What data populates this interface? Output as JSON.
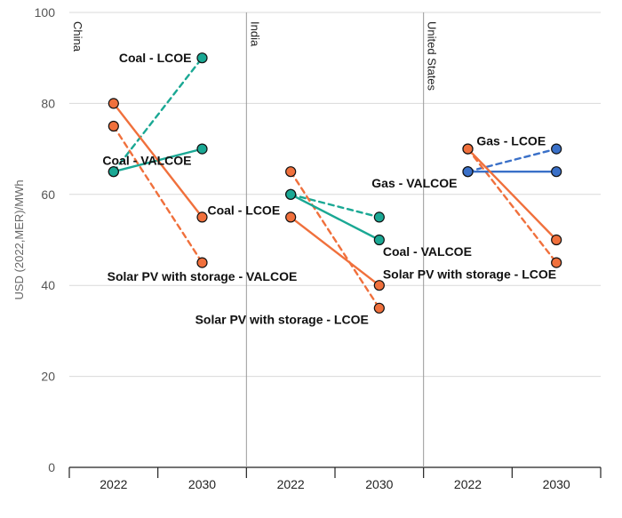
{
  "chart_data": {
    "type": "line",
    "ylabel": "USD (2022,MER)/MWh",
    "ylim": [
      0,
      100
    ],
    "yticks": [
      0,
      20,
      40,
      60,
      80,
      100
    ],
    "grid": "horizontal",
    "panels": [
      {
        "name": "China",
        "categories": [
          "2022",
          "2030"
        ],
        "series": [
          {
            "name": "Coal - LCOE",
            "values": [
              65,
              90
            ],
            "color": "#1aa894",
            "style": "dashed"
          },
          {
            "name": "Coal - VALCOE",
            "values": [
              65,
              70
            ],
            "color": "#1aa894",
            "style": "solid"
          },
          {
            "name": "Solar PV with storage - LCOE",
            "values": [
              75,
              45
            ],
            "color": "#f0703c",
            "style": "dashed"
          },
          {
            "name": "Solar PV with storage - VALCOE",
            "values": [
              80,
              55
            ],
            "color": "#f0703c",
            "style": "solid"
          }
        ]
      },
      {
        "name": "India",
        "categories": [
          "2022",
          "2030"
        ],
        "series": [
          {
            "name": "Coal - LCOE",
            "values": [
              60,
              55
            ],
            "color": "#1aa894",
            "style": "dashed"
          },
          {
            "name": "Coal - VALCOE",
            "values": [
              60,
              50
            ],
            "color": "#1aa894",
            "style": "solid"
          },
          {
            "name": "Solar PV with storage - LCOE",
            "values": [
              65,
              35
            ],
            "color": "#f0703c",
            "style": "dashed"
          },
          {
            "name": "Solar PV with storage - VALCOE",
            "values": [
              55,
              40
            ],
            "color": "#f0703c",
            "style": "solid"
          }
        ]
      },
      {
        "name": "United States",
        "categories": [
          "2022",
          "2030"
        ],
        "series": [
          {
            "name": "Gas - LCOE",
            "values": [
              65,
              70
            ],
            "color": "#3a70c8",
            "style": "dashed"
          },
          {
            "name": "Gas - VALCOE",
            "values": [
              65,
              65
            ],
            "color": "#3a70c8",
            "style": "solid"
          },
          {
            "name": "Solar PV with storage - LCOE",
            "values": [
              70,
              45
            ],
            "color": "#f0703c",
            "style": "dashed"
          },
          {
            "name": "Solar PV with storage - VALCOE",
            "values": [
              70,
              50
            ],
            "color": "#f0703c",
            "style": "solid"
          }
        ]
      }
    ],
    "annotations": [
      {
        "text": "Coal - LCOE",
        "panel": 0,
        "at": [
          1,
          90
        ],
        "anchor": "end"
      },
      {
        "text": "Coal - VALCOE",
        "panel": 0,
        "at": [
          1,
          67.5
        ],
        "anchor": "end"
      },
      {
        "text": "Solar PV with storage - VALCOE",
        "panel": 0,
        "at": [
          1,
          42
        ],
        "anchor": "start-shift"
      },
      {
        "text": "Coal - LCOE",
        "panel": 1,
        "at": [
          0,
          56.5
        ],
        "anchor": "end"
      },
      {
        "text": "Coal - VALCOE",
        "panel": 1,
        "at": [
          1,
          47.5
        ],
        "anchor": "start"
      },
      {
        "text": "Solar PV with storage - LCOE",
        "panel": 1,
        "at": [
          1,
          32.5
        ],
        "anchor": "end"
      },
      {
        "text": "Solar PV with storage - LCOE",
        "panel": 1,
        "at": [
          1,
          42.5
        ],
        "anchor": "start"
      },
      {
        "text": "Gas - LCOE",
        "panel": 2,
        "at": [
          1,
          71.8
        ],
        "anchor": "end"
      },
      {
        "text": "Gas - VALCOE",
        "panel": 2,
        "at": [
          0,
          62.5
        ],
        "anchor": "end"
      }
    ]
  }
}
